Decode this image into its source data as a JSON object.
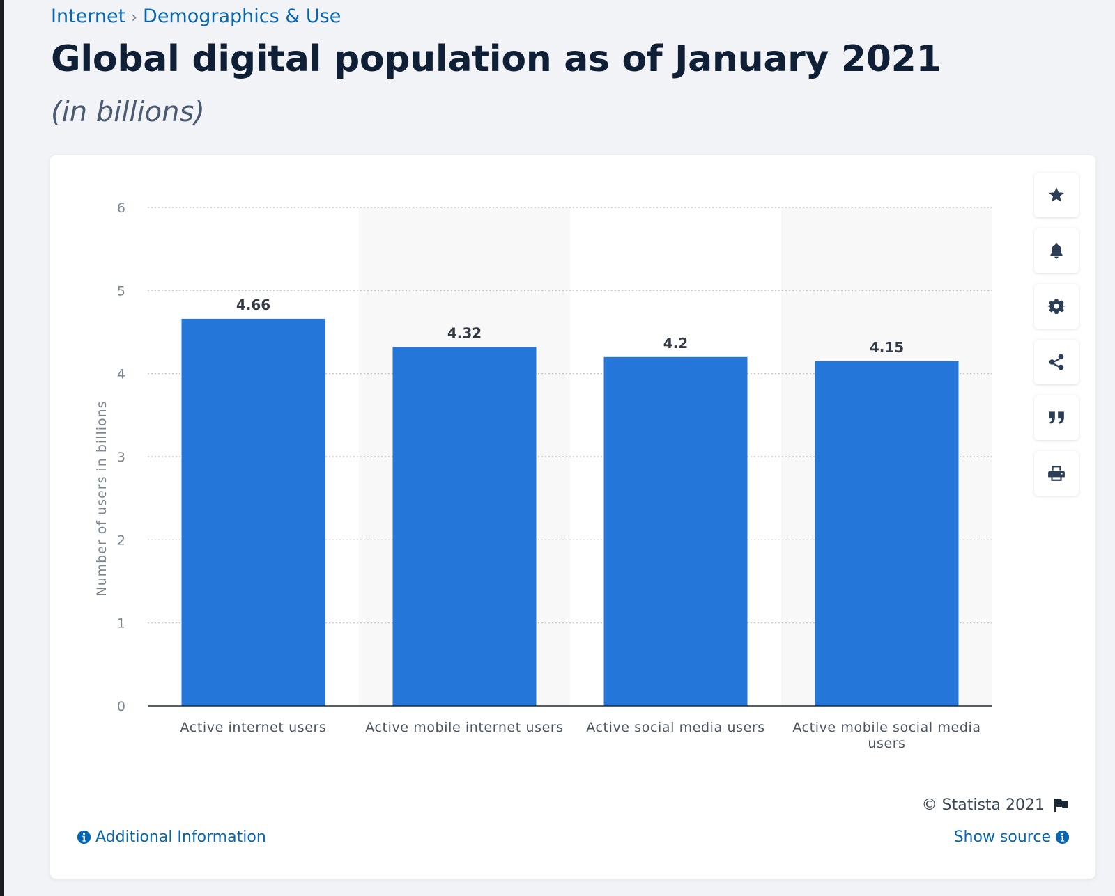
{
  "breadcrumb": {
    "items": [
      "Internet",
      "Demographics & Use"
    ],
    "separator": "›"
  },
  "title": "Global digital population as of January 2021",
  "subtitle": "(in billions)",
  "toolbar": {
    "buttons": [
      "star-icon",
      "bell-icon",
      "gear-icon",
      "share-icon",
      "quote-icon",
      "print-icon"
    ]
  },
  "footer": {
    "copyright": "© Statista 2021",
    "additional_info": "Additional Information",
    "show_source": "Show source"
  },
  "colors": {
    "bar": "#2576d9",
    "link": "#0766b1",
    "title": "#0f1f36"
  },
  "chart_data": {
    "type": "bar",
    "categories": [
      "Active internet users",
      "Active mobile internet users",
      "Active social media users",
      "Active mobile social media users"
    ],
    "values": [
      4.66,
      4.32,
      4.2,
      4.15
    ],
    "value_labels": [
      "4.66",
      "4.32",
      "4.2",
      "4.15"
    ],
    "xlabel": "",
    "ylabel": "Number of users in billions",
    "ylim": [
      0,
      6
    ],
    "yticks": [
      0,
      1,
      2,
      3,
      4,
      5,
      6
    ],
    "grid": true
  }
}
